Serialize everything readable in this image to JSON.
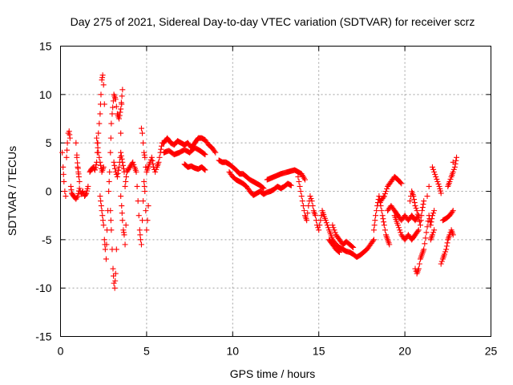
{
  "chart_data": {
    "type": "scatter",
    "title": "Day 275 of 2021, Sidereal Day-to-day VTEC variation (SDTVAR) for receiver scrz",
    "xlabel": "GPS time / hours",
    "ylabel": "SDTVAR / TECUs",
    "xlim": [
      0,
      25
    ],
    "ylim": [
      -15,
      15
    ],
    "x_ticks": [
      0,
      5,
      10,
      15,
      20,
      25
    ],
    "y_ticks": [
      -15,
      -10,
      -5,
      0,
      5,
      10,
      15
    ],
    "x_tick_labels": [
      "0",
      "5",
      "10",
      "15",
      "20",
      "25"
    ],
    "y_tick_labels": [
      "-15",
      "-10",
      "-5",
      "0",
      "5",
      "10",
      "15"
    ],
    "grid": true,
    "legend": "none",
    "marker": "+",
    "color": "#ff0000",
    "series": [
      {
        "name": "SDTVAR",
        "points": [
          [
            0.1,
            4.0
          ],
          [
            0.15,
            2.5
          ],
          [
            0.2,
            1.0
          ],
          [
            0.25,
            0.0
          ],
          [
            0.3,
            -0.5
          ],
          [
            0.35,
            3.5
          ],
          [
            0.4,
            5.0
          ],
          [
            0.45,
            6.0
          ],
          [
            0.5,
            6.2
          ],
          [
            0.55,
            5.5
          ],
          [
            0.6,
            0.5
          ],
          [
            0.65,
            -0.2
          ],
          [
            0.8,
            -0.6
          ],
          [
            0.9,
            -0.8
          ],
          [
            1.0,
            -0.5
          ],
          [
            1.1,
            0.3
          ],
          [
            1.2,
            -0.3
          ],
          [
            1.3,
            0.0
          ],
          [
            1.4,
            -0.5
          ],
          [
            1.5,
            -0.2
          ],
          [
            1.6,
            0.5
          ],
          [
            0.9,
            5.0
          ],
          [
            1.0,
            2.5
          ],
          [
            1.1,
            1.0
          ],
          [
            0.95,
            3.5
          ],
          [
            1.05,
            1.8
          ],
          [
            1.7,
            2.0
          ],
          [
            1.8,
            2.3
          ],
          [
            1.9,
            2.5
          ],
          [
            2.0,
            2.2
          ],
          [
            2.1,
            3.0
          ],
          [
            2.2,
            6.0
          ],
          [
            2.3,
            8.0
          ],
          [
            2.35,
            10.0
          ],
          [
            2.4,
            11.5
          ],
          [
            2.45,
            12.0
          ],
          [
            2.5,
            11.0
          ],
          [
            2.55,
            9.0
          ],
          [
            2.1,
            5.5
          ],
          [
            2.2,
            4.0
          ],
          [
            2.3,
            3.0
          ],
          [
            2.4,
            2.0
          ],
          [
            2.5,
            2.5
          ],
          [
            2.3,
            -0.5
          ],
          [
            2.4,
            -2.0
          ],
          [
            2.5,
            -3.5
          ],
          [
            2.55,
            -5.0
          ],
          [
            2.6,
            -6.0
          ],
          [
            2.65,
            -7.0
          ],
          [
            2.7,
            -4.0
          ],
          [
            2.75,
            -2.0
          ],
          [
            2.8,
            0.0
          ],
          [
            2.85,
            2.0
          ],
          [
            2.9,
            4.0
          ],
          [
            2.95,
            7.0
          ],
          [
            2.9,
            -2.0
          ],
          [
            2.95,
            -4.0
          ],
          [
            3.0,
            -6.0
          ],
          [
            3.05,
            -8.0
          ],
          [
            3.1,
            -9.5
          ],
          [
            3.15,
            -10.0
          ],
          [
            3.2,
            -8.5
          ],
          [
            3.25,
            -6.0
          ],
          [
            3.0,
            8.0
          ],
          [
            3.1,
            10.0
          ],
          [
            3.2,
            9.5
          ],
          [
            3.3,
            8.0
          ],
          [
            3.4,
            7.5
          ],
          [
            3.5,
            8.5
          ],
          [
            3.6,
            10.5
          ],
          [
            3.55,
            9.0
          ],
          [
            3.5,
            6.0
          ],
          [
            3.1,
            3.0
          ],
          [
            3.2,
            2.0
          ],
          [
            3.3,
            1.5
          ],
          [
            3.4,
            2.5
          ],
          [
            3.5,
            4.0
          ],
          [
            3.6,
            3.0
          ],
          [
            3.7,
            2.0
          ],
          [
            3.5,
            -0.5
          ],
          [
            3.55,
            -1.5
          ],
          [
            3.6,
            -3.0
          ],
          [
            3.65,
            -4.0
          ],
          [
            3.7,
            -4.5
          ],
          [
            3.75,
            -5.5
          ],
          [
            3.8,
            -3.5
          ],
          [
            3.75,
            0.5
          ],
          [
            3.85,
            2.0
          ],
          [
            4.2,
            3.0
          ],
          [
            4.3,
            2.5
          ],
          [
            4.4,
            2.0
          ],
          [
            4.6,
            -4.0
          ],
          [
            4.65,
            -5.0
          ],
          [
            4.7,
            -5.5
          ],
          [
            4.75,
            -3.0
          ],
          [
            4.8,
            -1.0
          ],
          [
            4.85,
            1.0
          ],
          [
            4.9,
            0.0
          ],
          [
            4.95,
            -2.0
          ],
          [
            5.0,
            -4.0
          ],
          [
            5.05,
            -3.0
          ],
          [
            5.1,
            -1.5
          ],
          [
            4.7,
            6.5
          ],
          [
            4.75,
            6.0
          ],
          [
            4.8,
            5.0
          ],
          [
            4.85,
            4.0
          ],
          [
            4.9,
            3.5
          ],
          [
            4.95,
            2.5
          ],
          [
            5.0,
            2.0
          ],
          [
            5.2,
            3.0
          ],
          [
            5.3,
            3.5
          ],
          [
            5.4,
            2.5
          ],
          [
            5.5,
            2.0
          ],
          [
            5.6,
            2.5
          ],
          [
            5.7,
            3.0
          ],
          [
            5.8,
            4.0
          ],
          [
            5.9,
            5.0
          ],
          [
            6.0,
            5.0
          ],
          [
            6.2,
            5.5
          ],
          [
            6.4,
            5.0
          ],
          [
            6.6,
            4.8
          ],
          [
            6.8,
            5.2
          ],
          [
            7.0,
            5.0
          ],
          [
            7.2,
            4.8
          ],
          [
            7.4,
            5.0
          ],
          [
            7.6,
            4.5
          ],
          [
            7.8,
            5.0
          ],
          [
            8.0,
            5.5
          ],
          [
            8.2,
            5.5
          ],
          [
            8.4,
            5.3
          ],
          [
            8.6,
            4.8
          ],
          [
            8.8,
            4.5
          ],
          [
            9.0,
            4.0
          ],
          [
            6.0,
            4.0
          ],
          [
            6.3,
            4.2
          ],
          [
            6.6,
            3.8
          ],
          [
            6.9,
            4.0
          ],
          [
            7.2,
            4.3
          ],
          [
            7.5,
            4.0
          ],
          [
            7.8,
            4.5
          ],
          [
            8.1,
            4.2
          ],
          [
            8.4,
            3.8
          ],
          [
            7.2,
            2.8
          ],
          [
            7.4,
            2.5
          ],
          [
            7.6,
            2.6
          ],
          [
            7.8,
            2.4
          ],
          [
            8.0,
            2.3
          ],
          [
            8.2,
            2.5
          ],
          [
            8.4,
            2.2
          ],
          [
            9.2,
            3.2
          ],
          [
            9.4,
            3.0
          ],
          [
            9.6,
            3.0
          ],
          [
            9.8,
            2.8
          ],
          [
            10.0,
            2.5
          ],
          [
            10.2,
            2.2
          ],
          [
            10.4,
            1.8
          ],
          [
            10.6,
            1.8
          ],
          [
            10.8,
            1.5
          ],
          [
            11.0,
            1.2
          ],
          [
            11.2,
            1.0
          ],
          [
            11.4,
            0.8
          ],
          [
            11.6,
            0.6
          ],
          [
            11.8,
            0.3
          ],
          [
            9.8,
            2.0
          ],
          [
            10.0,
            1.5
          ],
          [
            10.2,
            1.2
          ],
          [
            10.4,
            1.0
          ],
          [
            10.6,
            0.8
          ],
          [
            10.8,
            0.5
          ],
          [
            11.0,
            0.0
          ],
          [
            11.2,
            -0.4
          ],
          [
            11.4,
            -0.2
          ],
          [
            11.6,
            0.0
          ],
          [
            11.8,
            -0.3
          ],
          [
            12.0,
            -0.1
          ],
          [
            12.2,
            0.0
          ],
          [
            12.4,
            0.2
          ],
          [
            12.6,
            0.5
          ],
          [
            12.8,
            0.3
          ],
          [
            13.0,
            0.5
          ],
          [
            13.2,
            0.8
          ],
          [
            13.4,
            0.6
          ],
          [
            12.0,
            1.2
          ],
          [
            12.4,
            1.5
          ],
          [
            12.8,
            1.8
          ],
          [
            13.2,
            2.0
          ],
          [
            13.6,
            2.2
          ],
          [
            14.0,
            1.8
          ],
          [
            14.2,
            1.2
          ],
          [
            13.8,
            1.5
          ],
          [
            13.9,
            0.5
          ],
          [
            14.0,
            -0.5
          ],
          [
            14.1,
            -1.5
          ],
          [
            14.2,
            -2.5
          ],
          [
            14.3,
            -3.0
          ],
          [
            14.4,
            -1.5
          ],
          [
            14.5,
            -0.5
          ],
          [
            14.6,
            -1.0
          ],
          [
            14.7,
            -2.0
          ],
          [
            14.8,
            -2.5
          ],
          [
            14.9,
            -3.5
          ],
          [
            15.0,
            -4.0
          ],
          [
            15.2,
            -2.0
          ],
          [
            15.4,
            -3.0
          ],
          [
            15.6,
            -4.0
          ],
          [
            15.8,
            -5.0
          ],
          [
            16.0,
            -5.5
          ],
          [
            16.2,
            -5.8
          ],
          [
            16.4,
            -6.0
          ],
          [
            16.6,
            -6.2
          ],
          [
            16.8,
            -6.3
          ],
          [
            17.0,
            -6.5
          ],
          [
            17.2,
            -6.8
          ],
          [
            17.4,
            -6.6
          ],
          [
            17.6,
            -6.3
          ],
          [
            17.8,
            -6.0
          ],
          [
            18.0,
            -5.5
          ],
          [
            18.2,
            -5.0
          ],
          [
            15.8,
            -3.5
          ],
          [
            16.0,
            -4.5
          ],
          [
            16.2,
            -5.0
          ],
          [
            16.4,
            -5.5
          ],
          [
            16.6,
            -5.2
          ],
          [
            16.8,
            -5.5
          ],
          [
            17.0,
            -5.8
          ],
          [
            15.6,
            -5.0
          ],
          [
            15.8,
            -5.5
          ],
          [
            16.0,
            -6.0
          ],
          [
            16.2,
            -6.3
          ],
          [
            18.2,
            -4.0
          ],
          [
            18.3,
            -2.5
          ],
          [
            18.4,
            -1.5
          ],
          [
            18.5,
            -0.5
          ],
          [
            18.6,
            -1.5
          ],
          [
            18.7,
            -2.5
          ],
          [
            18.8,
            -3.5
          ],
          [
            18.9,
            -4.5
          ],
          [
            19.0,
            -5.0
          ],
          [
            19.1,
            -5.5
          ],
          [
            18.6,
            -1.0
          ],
          [
            18.8,
            -0.5
          ],
          [
            19.0,
            0.5
          ],
          [
            19.2,
            1.0
          ],
          [
            19.4,
            1.5
          ],
          [
            19.6,
            1.2
          ],
          [
            19.8,
            0.8
          ],
          [
            19.4,
            -2.5
          ],
          [
            19.6,
            -3.5
          ],
          [
            19.8,
            -4.5
          ],
          [
            20.0,
            -5.0
          ],
          [
            20.2,
            -4.5
          ],
          [
            20.4,
            -5.0
          ],
          [
            20.6,
            -4.5
          ],
          [
            20.8,
            -4.0
          ],
          [
            19.0,
            -2.0
          ],
          [
            19.2,
            -1.5
          ],
          [
            19.4,
            -2.0
          ],
          [
            19.6,
            -2.5
          ],
          [
            19.8,
            -3.0
          ],
          [
            20.0,
            -2.5
          ],
          [
            20.2,
            -3.0
          ],
          [
            20.4,
            -2.5
          ],
          [
            20.6,
            -3.0
          ],
          [
            20.8,
            -2.5
          ],
          [
            20.3,
            -1.0
          ],
          [
            20.4,
            0.0
          ],
          [
            20.5,
            -0.5
          ],
          [
            20.6,
            -1.5
          ],
          [
            20.7,
            -2.0
          ],
          [
            20.9,
            -3.5
          ],
          [
            21.0,
            -2.0
          ],
          [
            21.1,
            -1.0
          ],
          [
            20.6,
            -8.0
          ],
          [
            20.7,
            -8.5
          ],
          [
            20.8,
            -8.0
          ],
          [
            20.9,
            -7.0
          ],
          [
            21.0,
            -6.5
          ],
          [
            21.1,
            -6.0
          ],
          [
            21.4,
            -2.5
          ],
          [
            21.5,
            -3.5
          ],
          [
            21.6,
            -2.5
          ],
          [
            21.7,
            -2.0
          ],
          [
            21.5,
            -5.0
          ],
          [
            21.6,
            -4.5
          ],
          [
            21.7,
            -4.0
          ],
          [
            21.6,
            2.5
          ],
          [
            21.8,
            1.5
          ],
          [
            22.0,
            0.5
          ],
          [
            22.1,
            -0.2
          ],
          [
            21.4,
            0.5
          ],
          [
            21.3,
            -0.5
          ],
          [
            22.1,
            -7.5
          ],
          [
            22.2,
            -7.0
          ],
          [
            22.3,
            -6.5
          ],
          [
            22.4,
            -6.0
          ],
          [
            22.5,
            -5.0
          ],
          [
            22.6,
            -4.5
          ],
          [
            22.7,
            -4.0
          ],
          [
            22.8,
            -4.5
          ],
          [
            22.2,
            -3.0
          ],
          [
            22.4,
            -2.8
          ],
          [
            22.6,
            -2.5
          ],
          [
            22.8,
            -2.0
          ],
          [
            22.5,
            0.5
          ],
          [
            22.6,
            1.0
          ],
          [
            22.7,
            1.5
          ],
          [
            22.8,
            2.0
          ],
          [
            22.9,
            2.5
          ],
          [
            23.0,
            3.5
          ],
          [
            22.8,
            3.0
          ]
        ]
      }
    ]
  }
}
